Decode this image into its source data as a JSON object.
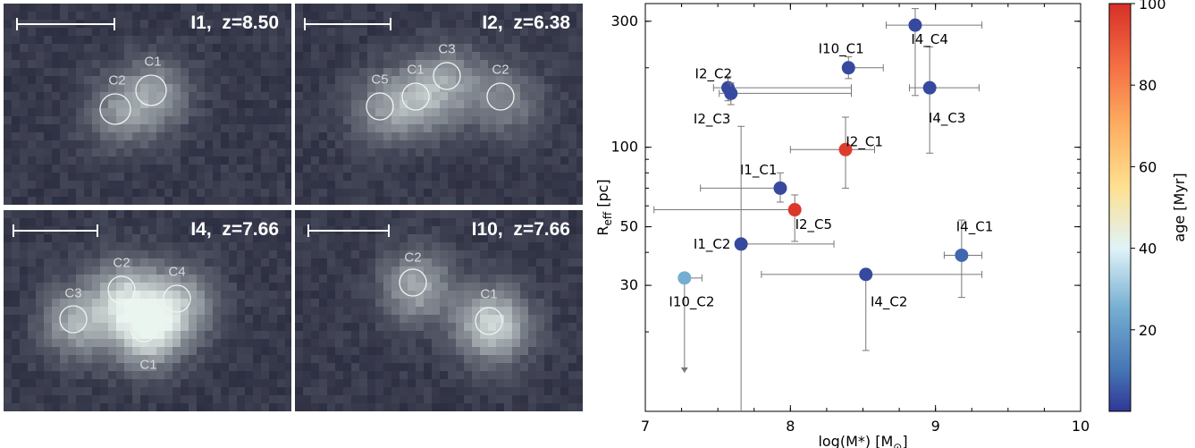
{
  "panels": [
    {
      "id": "I1",
      "label": "I1,  z=8.50",
      "clumps": [
        {
          "name": "C1",
          "cx": 165,
          "cy": 97,
          "r": 17,
          "lx": 167,
          "ly": 65,
          "b": 0.55
        },
        {
          "name": "C2",
          "cx": 125,
          "cy": 118,
          "r": 17,
          "lx": 127,
          "ly": 86,
          "b": 0.45
        }
      ]
    },
    {
      "id": "I2",
      "label": "I2,  z=6.38",
      "clumps": [
        {
          "name": "C1",
          "cx": 135,
          "cy": 104,
          "r": 15,
          "lx": 135,
          "ly": 74,
          "b": 0.55
        },
        {
          "name": "C2",
          "cx": 230,
          "cy": 104,
          "r": 15,
          "lx": 230,
          "ly": 74,
          "b": 0.45
        },
        {
          "name": "C3",
          "cx": 170,
          "cy": 81,
          "r": 15,
          "lx": 170,
          "ly": 51,
          "b": 0.45
        },
        {
          "name": "C5",
          "cx": 95,
          "cy": 115,
          "r": 15,
          "lx": 95,
          "ly": 85,
          "b": 0.45
        }
      ]
    },
    {
      "id": "I4",
      "label": "I4,  z=7.66",
      "clumps": [
        {
          "name": "C1",
          "cx": 157,
          "cy": 132,
          "r": 15,
          "lx": 162,
          "ly": 173,
          "b": 1.0
        },
        {
          "name": "C2",
          "cx": 132,
          "cy": 89,
          "r": 15,
          "lx": 132,
          "ly": 59,
          "b": 0.75
        },
        {
          "name": "C3",
          "cx": 78,
          "cy": 122,
          "r": 15,
          "lx": 78,
          "ly": 93,
          "b": 0.7
        },
        {
          "name": "C4",
          "cx": 194,
          "cy": 99,
          "r": 15,
          "lx": 194,
          "ly": 69,
          "b": 0.65
        }
      ]
    },
    {
      "id": "I10",
      "label": "I10,  z=7.66",
      "clumps": [
        {
          "name": "C1",
          "cx": 217,
          "cy": 124,
          "r": 15,
          "lx": 217,
          "ly": 94,
          "b": 1.0
        },
        {
          "name": "C2",
          "cx": 132,
          "cy": 81,
          "r": 15,
          "lx": 132,
          "ly": 53,
          "b": 0.7
        }
      ]
    }
  ],
  "chart_data": {
    "type": "scatter",
    "xlabel": "log(M",
    "xlabel_sub": "*",
    "xlabel_unit": ") [M",
    "xlabel_sun": "⊙",
    "xlabel_end": "]",
    "ylabel_main": "R",
    "ylabel_sub": "eff",
    "ylabel_unit": " [pc]",
    "xlim": [
      7,
      10
    ],
    "ylim": [
      10,
      350
    ],
    "yscale": "log",
    "xticks": [
      7,
      8,
      9,
      10
    ],
    "yticks": [
      30,
      50,
      100,
      300
    ],
    "colorbar": {
      "label": "age [Myr]",
      "range": [
        0,
        100
      ],
      "ticks": [
        20,
        40,
        60,
        80,
        100
      ],
      "cmap": "RdYlBu_r"
    },
    "points": [
      {
        "name": "I1_C1",
        "x": 7.93,
        "y": 70,
        "age": 3,
        "xerr": [
          0.55,
          0.0
        ],
        "yerr": [
          62,
          80
        ],
        "lx": 7.78,
        "ly": 82
      },
      {
        "name": "I1_C2",
        "x": 7.66,
        "y": 43,
        "age": 3,
        "xerr": [
          0.0,
          0.64
        ],
        "yerr": [
          1,
          120
        ],
        "lx": 7.46,
        "ly": 43
      },
      {
        "name": "I2_C1",
        "x": 8.38,
        "y": 98,
        "age": 97,
        "xerr": [
          0.38,
          0.2
        ],
        "yerr": [
          70,
          130
        ],
        "lx": 8.51,
        "ly": 105
      },
      {
        "name": "I2_C2",
        "x": 7.57,
        "y": 168,
        "age": 3,
        "xerr": [
          0.1,
          0.85
        ],
        "yerr": [
          150,
          185
        ],
        "lx": 7.47,
        "ly": 190
      },
      {
        "name": "I2_C3",
        "x": 7.59,
        "y": 160,
        "age": 3,
        "xerr": [
          0.08,
          0.83
        ],
        "yerr": [
          145,
          175
        ],
        "lx": 7.46,
        "ly": 128
      },
      {
        "name": "I2_C5",
        "x": 8.03,
        "y": 58,
        "age": 98,
        "xerr": [
          0.97,
          0.0
        ],
        "yerr": [
          44,
          66
        ],
        "lx": 8.16,
        "ly": 51
      },
      {
        "name": "I4_C1",
        "x": 9.18,
        "y": 39,
        "age": 8,
        "xerr": [
          0.12,
          0.14
        ],
        "yerr": [
          27,
          53
        ],
        "lx": 9.27,
        "ly": 50
      },
      {
        "name": "I4_C2",
        "x": 8.52,
        "y": 33,
        "age": 3,
        "xerr": [
          0.72,
          0.8
        ],
        "yerr": [
          17,
          33
        ],
        "lx": 8.68,
        "ly": 26
      },
      {
        "name": "I4_C3",
        "x": 8.96,
        "y": 168,
        "age": 3,
        "xerr": [
          0.14,
          0.34
        ],
        "yerr": [
          95,
          240
        ],
        "lx": 9.08,
        "ly": 129
      },
      {
        "name": "I4_C4",
        "x": 8.86,
        "y": 290,
        "age": 3,
        "xerr": [
          0.2,
          0.46
        ],
        "yerr": [
          157,
          335
        ],
        "lx": 8.96,
        "ly": 256
      },
      {
        "name": "I10_C1",
        "x": 8.4,
        "y": 200,
        "age": 3,
        "xerr": [
          0.0,
          0.24
        ],
        "yerr": [
          182,
          220
        ],
        "lx": 8.35,
        "ly": 236
      },
      {
        "name": "I10_C2",
        "x": 7.27,
        "y": 32,
        "age": 25,
        "xerr": [
          0.0,
          0.12
        ],
        "yerr": [
          14,
          32
        ],
        "lx": 7.32,
        "ly": 26
      }
    ]
  }
}
